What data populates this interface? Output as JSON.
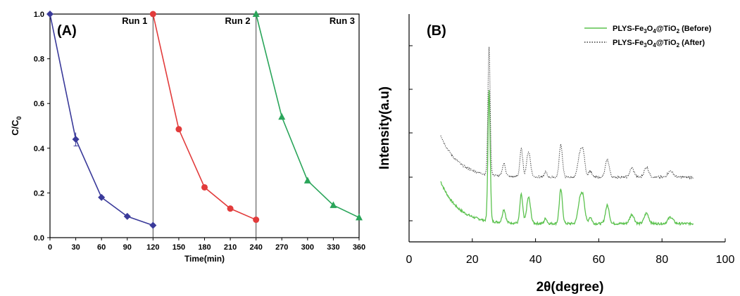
{
  "chart_data": [
    {
      "type": "line",
      "panel_label": "(A)",
      "xlabel": "Time(min)",
      "ylabel_main": "C/C",
      "ylabel_sub": "0",
      "xlim": [
        0,
        360
      ],
      "ylim": [
        0,
        1.0
      ],
      "xticks": [
        "0",
        "30",
        "60",
        "90",
        "120",
        "150",
        "180",
        "210",
        "240",
        "270",
        "300",
        "330",
        "360"
      ],
      "yticks": [
        "0.0",
        "0.2",
        "0.4",
        "0.6",
        "0.8",
        "1.0"
      ],
      "run_labels": [
        "Run 1",
        "Run 2",
        "Run 3"
      ],
      "run_dividers": [
        120,
        240
      ],
      "series": [
        {
          "name": "Run 1",
          "color": "#3a3a9a",
          "marker": "diamond",
          "x": [
            0,
            30,
            60,
            90,
            120
          ],
          "y": [
            1.0,
            0.44,
            0.18,
            0.095,
            0.055
          ],
          "error_x": 30,
          "error": 0.03
        },
        {
          "name": "Run 2",
          "color": "#e23b3b",
          "marker": "circle",
          "x": [
            120,
            150,
            180,
            210,
            240
          ],
          "y": [
            1.0,
            0.485,
            0.225,
            0.13,
            0.08
          ]
        },
        {
          "name": "Run 3",
          "color": "#2aa55a",
          "marker": "triangle",
          "x": [
            240,
            270,
            300,
            330,
            360
          ],
          "y": [
            1.0,
            0.54,
            0.255,
            0.145,
            0.09
          ]
        }
      ]
    },
    {
      "type": "line",
      "panel_label": "(B)",
      "xlabel": "2θ(degree)",
      "ylabel": "Intensity(a.u)",
      "xlim": [
        0,
        100
      ],
      "xticks": [
        "0",
        "20",
        "40",
        "60",
        "80",
        "100"
      ],
      "yticks_labeled": false,
      "legend": [
        {
          "text_main": "PLYS-Fe",
          "sub1": "3",
          "mid": "O",
          "sub2": "4",
          "tail": "@TiO",
          "sub3": "2",
          "end": " (Before)",
          "style": "solid"
        },
        {
          "text_main": "PLYS-Fe",
          "sub1": "3",
          "mid": "O",
          "sub2": "4",
          "tail": "@TiO",
          "sub3": "2",
          "end": " (After)",
          "style": "dotted"
        }
      ],
      "legend_position": "top-right",
      "series": [
        {
          "name": "PLYS-Fe3O4@TiO2 (Before)",
          "color": "#5cc24f",
          "style": "solid",
          "baseline": 0.12,
          "start_rise": 0.14
        },
        {
          "name": "PLYS-Fe3O4@TiO2 (After)",
          "color": "#3a3a3a",
          "style": "dotted",
          "baseline": 0.42,
          "start_rise": 0.15
        }
      ],
      "peaks_2theta": [
        25.3,
        30.0,
        35.5,
        37.8,
        43.2,
        48.0,
        53.9,
        55.0,
        57.3,
        62.7,
        70.5,
        75.1,
        82.7
      ]
    }
  ]
}
